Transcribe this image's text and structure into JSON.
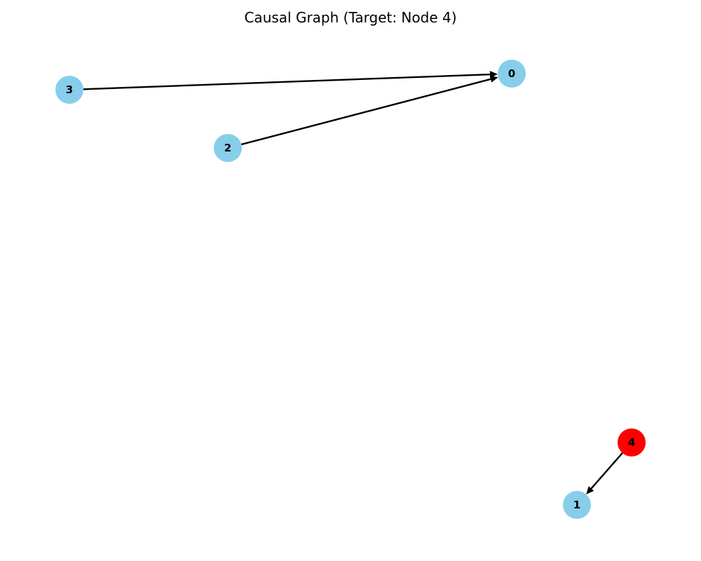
{
  "title": "Causal Graph (Target: Node 4)",
  "colors": {
    "node_default": "#87ceeb",
    "node_target": "#ff0000",
    "edge": "#000000"
  },
  "target_node": "4",
  "nodes": [
    {
      "id": "0",
      "label": "0",
      "is_target": false
    },
    {
      "id": "1",
      "label": "1",
      "is_target": false
    },
    {
      "id": "2",
      "label": "2",
      "is_target": false
    },
    {
      "id": "3",
      "label": "3",
      "is_target": false
    },
    {
      "id": "4",
      "label": "4",
      "is_target": true
    }
  ],
  "edges": [
    {
      "source": "3",
      "target": "0"
    },
    {
      "source": "2",
      "target": "0"
    },
    {
      "source": "4",
      "target": "1"
    }
  ]
}
